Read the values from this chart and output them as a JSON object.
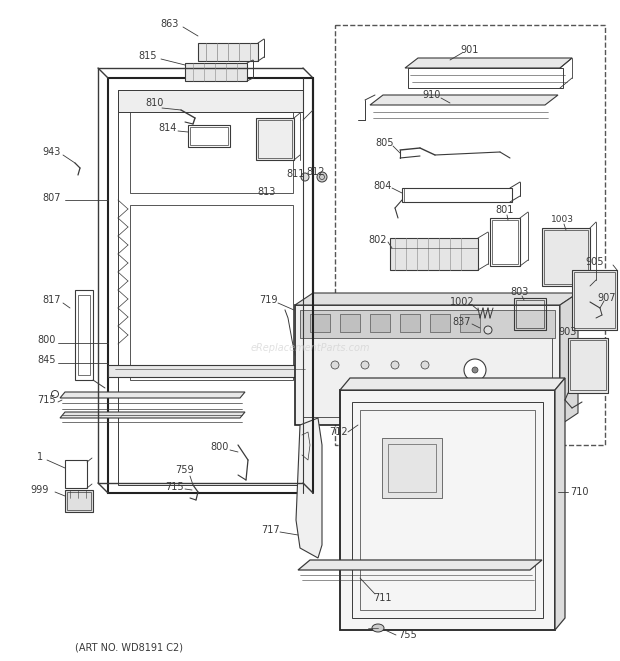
{
  "bg_color": "#ffffff",
  "lc": "#3a3a3a",
  "tc": "#3a3a3a",
  "art_no": "(ART NO. WD8191 C2)",
  "watermark": "eReplacementParts.com",
  "figsize": [
    6.2,
    6.61
  ],
  "dpi": 100
}
